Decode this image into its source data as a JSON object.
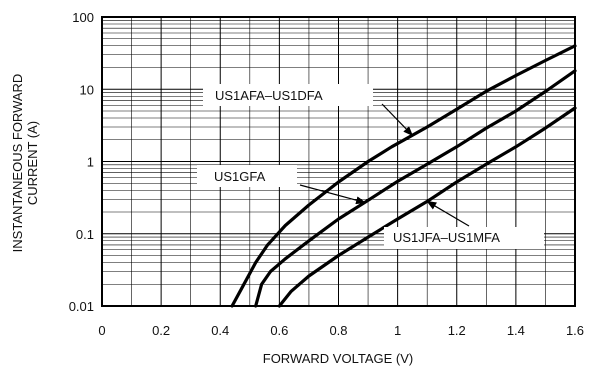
{
  "chart_data": {
    "type": "line",
    "title": "",
    "xlabel": "FORWARD VOLTAGE (V)",
    "ylabel_lines": [
      "INSTANTANEOUS FORWARD",
      "CURRENT (A)"
    ],
    "xscale": "linear",
    "yscale": "log",
    "xlim": [
      0,
      1.6
    ],
    "ylim": [
      0.01,
      100
    ],
    "grid": true,
    "x_ticks": [
      0,
      0.2,
      0.4,
      0.6,
      0.8,
      1.0,
      1.2,
      1.4,
      1.6
    ],
    "x_tick_labels": [
      "0",
      "0.2",
      "0.4",
      "0.6",
      "0.8",
      "1",
      "1.2",
      "1.4",
      "1.6"
    ],
    "y_ticks": [
      0.01,
      0.1,
      1,
      10,
      100
    ],
    "y_tick_labels": [
      "0.01",
      "0.1",
      "1",
      "10",
      "100"
    ],
    "series": [
      {
        "name": "US1AFA–US1DFA",
        "x": [
          0.44,
          0.48,
          0.52,
          0.56,
          0.62,
          0.7,
          0.8,
          0.9,
          0.98,
          1.1,
          1.2,
          1.3,
          1.4,
          1.5,
          1.6
        ],
        "y": [
          0.01,
          0.02,
          0.04,
          0.07,
          0.13,
          0.25,
          0.52,
          1.0,
          1.6,
          3.0,
          5.3,
          9.4,
          15.5,
          25,
          40
        ]
      },
      {
        "name": "US1GFA",
        "x": [
          0.52,
          0.54,
          0.57,
          0.62,
          0.7,
          0.8,
          0.9,
          1.0,
          1.1,
          1.2,
          1.3,
          1.4,
          1.5,
          1.6
        ],
        "y": [
          0.01,
          0.02,
          0.03,
          0.045,
          0.08,
          0.16,
          0.29,
          0.53,
          0.92,
          1.6,
          2.9,
          5.0,
          9.3,
          18
        ]
      },
      {
        "name": "US1JFA–US1MFA",
        "x": [
          0.6,
          0.64,
          0.7,
          0.8,
          0.9,
          1.0,
          1.1,
          1.2,
          1.3,
          1.4,
          1.5,
          1.6
        ],
        "y": [
          0.01,
          0.016,
          0.026,
          0.05,
          0.09,
          0.16,
          0.28,
          0.52,
          0.92,
          1.6,
          2.9,
          5.5
        ]
      }
    ],
    "annotations": [
      {
        "text": "US1AFA–US1DFA",
        "series": 0,
        "arrow_to": [
          1.05,
          2.3
        ]
      },
      {
        "text": "US1GFA",
        "series": 1,
        "arrow_to": [
          0.89,
          0.27
        ]
      },
      {
        "text": "US1JFA–US1MFA",
        "series": 2,
        "arrow_to": [
          1.1,
          0.28
        ]
      }
    ]
  }
}
